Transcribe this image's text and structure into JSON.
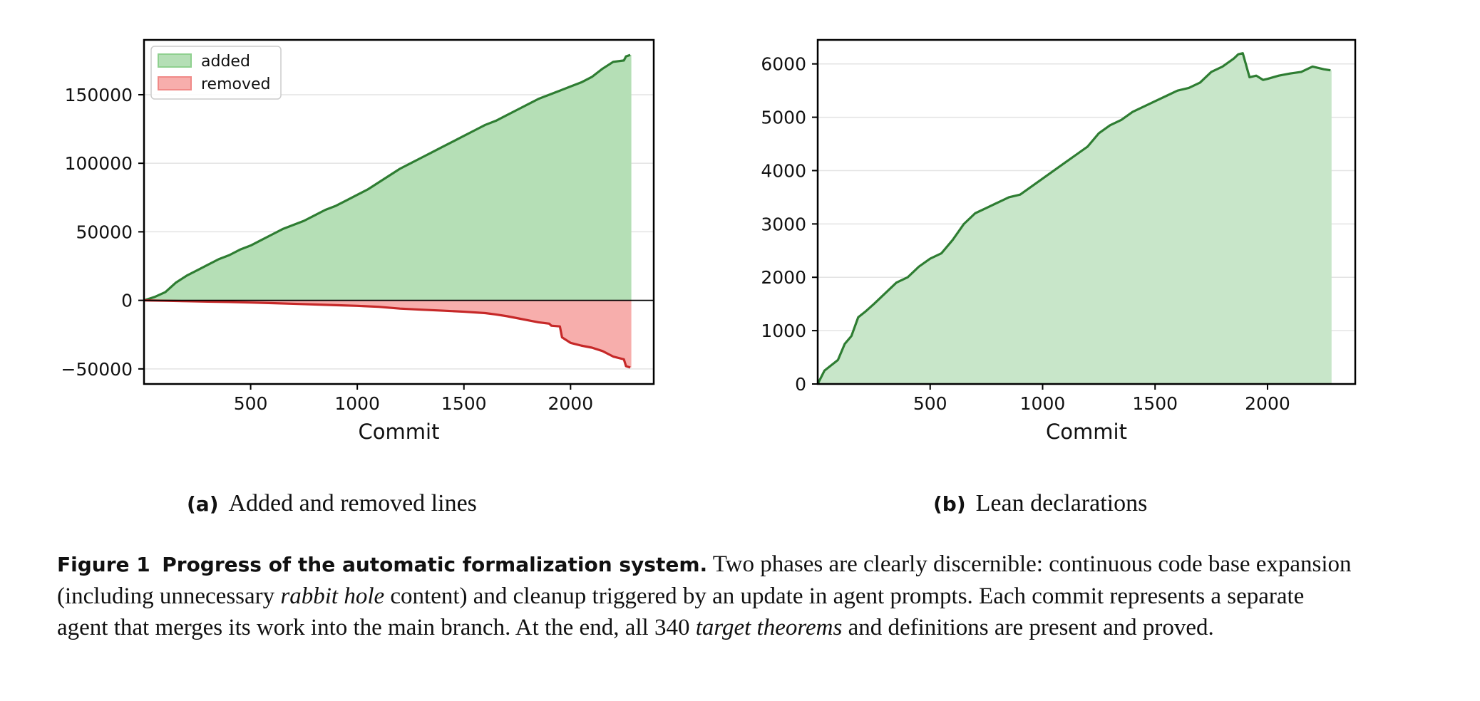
{
  "chart_data": [
    {
      "type": "area",
      "panel_tag": "(a)",
      "caption": "Added and removed lines",
      "xlabel": "Commit",
      "ylabel": "",
      "xlim": [
        0,
        2390
      ],
      "ylim": [
        -61000,
        190000
      ],
      "xticks": [
        500,
        1000,
        1500,
        2000
      ],
      "yticks": [
        -50000,
        0,
        50000,
        100000,
        150000
      ],
      "ytick_labels": [
        "−50000",
        "0",
        "50000",
        "100000",
        "150000"
      ],
      "grid": "horizontal",
      "legend_position": "top-left",
      "series": [
        {
          "name": "added",
          "color": "#2e7d32",
          "fill": "#b5dfb6",
          "x": [
            0,
            50,
            100,
            150,
            200,
            250,
            300,
            350,
            400,
            450,
            500,
            550,
            600,
            650,
            700,
            750,
            800,
            850,
            900,
            950,
            1000,
            1050,
            1100,
            1150,
            1200,
            1250,
            1300,
            1350,
            1400,
            1450,
            1500,
            1550,
            1600,
            1650,
            1700,
            1750,
            1800,
            1850,
            1900,
            1950,
            2000,
            2050,
            2100,
            2150,
            2200,
            2250,
            2260,
            2280
          ],
          "values": [
            0,
            2500,
            6000,
            13000,
            18000,
            22000,
            26000,
            30000,
            33000,
            37000,
            40000,
            44000,
            48000,
            52000,
            55000,
            58000,
            62000,
            66000,
            69000,
            73000,
            77000,
            81000,
            86000,
            91000,
            96000,
            100000,
            104000,
            108000,
            112000,
            116000,
            120000,
            124000,
            128000,
            131000,
            135000,
            139000,
            143000,
            147000,
            150000,
            153000,
            156000,
            159000,
            163000,
            169000,
            174000,
            175000,
            178000,
            179000
          ]
        },
        {
          "name": "removed",
          "color": "#c62828",
          "fill": "#f7aeac",
          "x": [
            0,
            100,
            200,
            300,
            400,
            500,
            600,
            700,
            800,
            900,
            1000,
            1100,
            1200,
            1300,
            1400,
            1500,
            1600,
            1650,
            1700,
            1750,
            1800,
            1850,
            1900,
            1910,
            1950,
            1960,
            2000,
            2050,
            2100,
            2150,
            2200,
            2250,
            2260,
            2280
          ],
          "values": [
            0,
            -300,
            -600,
            -900,
            -1200,
            -1600,
            -2000,
            -2500,
            -3000,
            -3500,
            -4000,
            -4700,
            -6000,
            -6800,
            -7500,
            -8300,
            -9300,
            -10300,
            -11500,
            -13000,
            -14500,
            -16000,
            -17000,
            -18500,
            -19000,
            -27000,
            -31000,
            -33000,
            -34500,
            -37000,
            -41000,
            -43000,
            -48000,
            -49000
          ]
        }
      ]
    },
    {
      "type": "area",
      "panel_tag": "(b)",
      "caption": "Lean declarations",
      "xlabel": "Commit",
      "ylabel": "",
      "xlim": [
        0,
        2390
      ],
      "ylim": [
        0,
        6450
      ],
      "xticks": [
        500,
        1000,
        1500,
        2000
      ],
      "yticks": [
        0,
        1000,
        2000,
        3000,
        4000,
        5000,
        6000
      ],
      "ytick_labels": [
        "0",
        "1000",
        "2000",
        "3000",
        "4000",
        "5000",
        "6000"
      ],
      "grid": "horizontal",
      "series": [
        {
          "name": "",
          "color": "#2e7d32",
          "fill": "#c8e6c9",
          "x": [
            0,
            30,
            60,
            90,
            120,
            150,
            180,
            210,
            250,
            300,
            350,
            400,
            450,
            500,
            550,
            600,
            650,
            700,
            750,
            800,
            850,
            900,
            950,
            1000,
            1050,
            1100,
            1150,
            1200,
            1250,
            1300,
            1350,
            1400,
            1450,
            1500,
            1550,
            1600,
            1650,
            1700,
            1750,
            1800,
            1850,
            1870,
            1890,
            1920,
            1950,
            1980,
            2000,
            2050,
            2100,
            2150,
            2200,
            2220,
            2250,
            2280
          ],
          "values": [
            0,
            250,
            350,
            450,
            750,
            900,
            1250,
            1350,
            1500,
            1700,
            1900,
            2000,
            2200,
            2350,
            2450,
            2700,
            3000,
            3200,
            3300,
            3400,
            3500,
            3550,
            3700,
            3850,
            4000,
            4150,
            4300,
            4450,
            4700,
            4850,
            4950,
            5100,
            5200,
            5300,
            5400,
            5500,
            5550,
            5650,
            5850,
            5950,
            6100,
            6180,
            6200,
            5750,
            5780,
            5700,
            5720,
            5780,
            5820,
            5850,
            5950,
            5930,
            5900,
            5880
          ]
        }
      ]
    }
  ],
  "figure_caption": {
    "tag": "Figure 1",
    "title": "Progress of the automatic formalization system.",
    "seg1": " Two phases are clearly discernible: continuous code base expansion (including unnecessary ",
    "em1": "rabbit hole",
    "seg2": " content) and cleanup triggered by an update in agent prompts. Each commit represents a separate agent that merges its work into the main branch. At the end, all 340 ",
    "em2": "target theorems",
    "seg3": " and definitions are present and proved."
  }
}
